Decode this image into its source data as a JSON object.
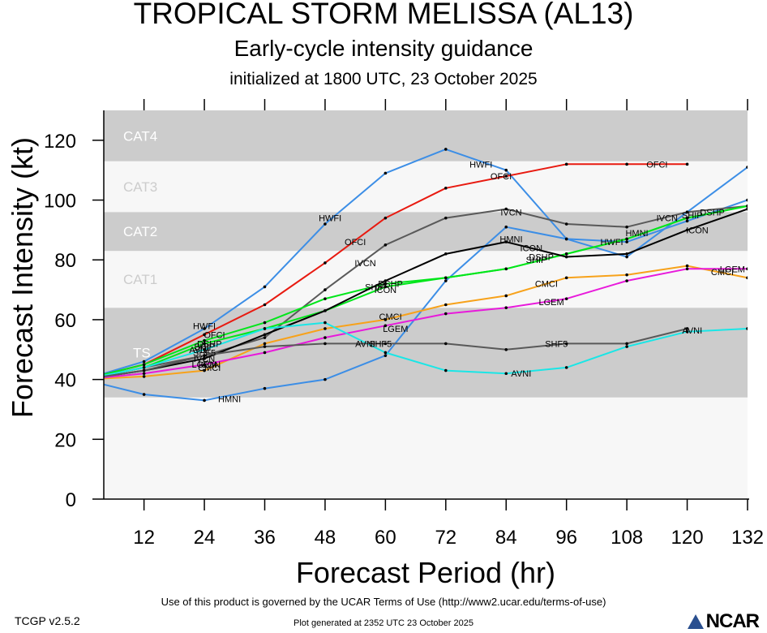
{
  "header": {
    "title": "TROPICAL STORM MELISSA (AL13)",
    "subtitle": "Early-cycle intensity guidance",
    "init": "initialized at 1800 UTC, 23 October 2025"
  },
  "footer": {
    "terms": "Use of this product is governed by the UCAR Terms of Use (http://www2.ucar.edu/terms-of-use)",
    "version": "TCGP v2.5.2",
    "generated": "Plot generated at 2352 UTC   23 October 2025",
    "logo": "NCAR"
  },
  "chart_data": {
    "type": "line",
    "xlabel": "Forecast Period (hr)",
    "ylabel": "Forecast Intensity (kt)",
    "xlim": [
      4,
      132
    ],
    "ylim": [
      0,
      130
    ],
    "xticks": [
      12,
      24,
      36,
      48,
      60,
      72,
      84,
      96,
      108,
      120,
      132
    ],
    "yticks": [
      0,
      20,
      40,
      60,
      80,
      100,
      120
    ],
    "grid": false,
    "bands": [
      {
        "label": "TS",
        "from": 34,
        "to": 64,
        "color": "#cccccc"
      },
      {
        "label": "CAT1",
        "from": 64,
        "to": 83,
        "color": "#f7f7f7"
      },
      {
        "label": "CAT2",
        "from": 83,
        "to": 96,
        "color": "#cccccc"
      },
      {
        "label": "CAT3",
        "from": 96,
        "to": 113,
        "color": "#f7f7f7"
      },
      {
        "label": "CAT4",
        "from": 113,
        "to": 130,
        "color": "#cccccc"
      }
    ],
    "series": [
      {
        "name": "HMNI",
        "color": "#3c8ee6",
        "x": [
          0,
          12,
          24,
          36,
          48,
          60,
          72,
          84,
          96,
          108,
          120,
          132
        ],
        "y": [
          40,
          35,
          33,
          37,
          40,
          48,
          73,
          91,
          87,
          86,
          93,
          100
        ],
        "labels": [
          [
            29,
            33.5
          ],
          [
            85,
            87
          ],
          [
            110,
            89
          ]
        ]
      },
      {
        "name": "HWFI",
        "color": "#3c8ee6",
        "x": [
          0,
          12,
          24,
          36,
          48,
          60,
          72,
          84,
          96,
          108,
          120,
          132
        ],
        "y": [
          40,
          46,
          57,
          71,
          92,
          109,
          117,
          110,
          87,
          81,
          96,
          111
        ],
        "labels": [
          [
            24,
            58
          ],
          [
            49,
            94
          ],
          [
            79,
            112
          ],
          [
            105,
            86
          ]
        ]
      },
      {
        "name": "OFCI",
        "color": "#e81a10",
        "x": [
          0,
          12,
          24,
          36,
          48,
          60,
          72,
          84,
          96,
          108,
          120
        ],
        "y": [
          40,
          45,
          55,
          65,
          79,
          94,
          104,
          108,
          112,
          112,
          112
        ],
        "labels": [
          [
            26,
            55
          ],
          [
            54,
            86
          ],
          [
            83,
            108
          ],
          [
            114,
            112
          ]
        ]
      },
      {
        "name": "IVCN",
        "color": "#595959",
        "x": [
          0,
          12,
          24,
          36,
          48,
          60,
          72,
          84,
          96,
          108,
          120,
          132
        ],
        "y": [
          40,
          44,
          48,
          54,
          70,
          85,
          94,
          97,
          92,
          91,
          96,
          98
        ],
        "labels": [
          [
            24,
            47
          ],
          [
            56,
            79
          ],
          [
            85,
            96
          ],
          [
            116,
            94
          ]
        ]
      },
      {
        "name": "DSHP",
        "color": "#00e61a",
        "x": [
          0,
          12,
          24,
          36,
          48,
          60,
          72,
          84,
          96,
          108,
          120,
          132
        ],
        "y": [
          40,
          45,
          53,
          59,
          67,
          72,
          74,
          77,
          82,
          87,
          94,
          98
        ],
        "labels": [
          [
            25,
            52
          ],
          [
            61,
            72
          ],
          [
            91,
            81
          ],
          [
            125,
            96
          ]
        ]
      },
      {
        "name": "SHIP",
        "color": "#00e61a",
        "x": [
          0,
          12,
          24,
          36,
          48,
          60,
          72,
          84,
          96,
          108,
          120,
          132
        ],
        "y": [
          40,
          44,
          52,
          57,
          63,
          71,
          74,
          77,
          82,
          87,
          94,
          98
        ],
        "labels": [
          [
            24,
            51
          ],
          [
            58,
            71
          ],
          [
            90,
            80
          ],
          [
            121,
            95
          ]
        ]
      },
      {
        "name": "ICON",
        "color": "#000000",
        "x": [
          0,
          12,
          24,
          36,
          48,
          60,
          72,
          84,
          96,
          108,
          120,
          132
        ],
        "y": [
          40,
          43,
          47,
          55,
          63,
          73,
          82,
          86,
          81,
          82,
          90,
          97
        ],
        "labels": [
          [
            25,
            45
          ],
          [
            60,
            70
          ],
          [
            89,
            84
          ],
          [
            122,
            90
          ]
        ]
      },
      {
        "name": "CMCI",
        "color": "#f7a21b",
        "x": [
          0,
          12,
          24,
          36,
          48,
          60,
          72,
          84,
          96,
          108,
          120,
          132
        ],
        "y": [
          40,
          41,
          43,
          52,
          57,
          60,
          65,
          68,
          74,
          75,
          78,
          74
        ],
        "labels": [
          [
            25,
            44
          ],
          [
            61,
            61
          ],
          [
            92,
            72
          ],
          [
            127,
            76
          ]
        ]
      },
      {
        "name": "LGEM",
        "color": "#e81adb",
        "x": [
          0,
          12,
          24,
          36,
          48,
          60,
          72,
          84,
          96,
          108,
          120,
          132
        ],
        "y": [
          40,
          42,
          45,
          49,
          54,
          58,
          62,
          64,
          67,
          73,
          77,
          77
        ],
        "labels": [
          [
            24,
            45
          ],
          [
            62,
            57
          ],
          [
            93,
            66
          ],
          [
            129,
            77
          ]
        ]
      },
      {
        "name": "AVNI",
        "color": "#1ae6e6",
        "x": [
          0,
          12,
          24,
          36,
          48,
          60,
          72,
          84,
          96,
          108,
          120,
          132
        ],
        "y": [
          40,
          44,
          50,
          57,
          59,
          49,
          43,
          42,
          44,
          51,
          56,
          57
        ],
        "labels": [
          [
            23,
            50
          ],
          [
            56,
            52
          ],
          [
            87,
            42
          ],
          [
            121,
            56.5
          ]
        ]
      },
      {
        "name": "SHF5",
        "color": "#595959",
        "x": [
          0,
          12,
          24,
          36,
          48,
          60,
          72,
          84,
          96,
          108,
          120
        ],
        "y": [
          40,
          43,
          48,
          51,
          52,
          52,
          52,
          50,
          52,
          52,
          57
        ],
        "labels": [
          [
            24,
            49
          ],
          [
            59,
            52
          ],
          [
            94,
            52
          ]
        ]
      }
    ]
  }
}
